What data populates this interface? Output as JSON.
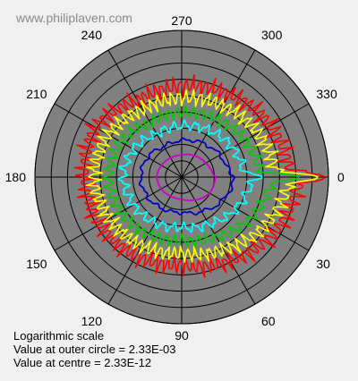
{
  "watermark": "www.philiplaven.com",
  "scale_label": "Logarithmic scale",
  "outer_label": "Value at outer circle = 2.33E-03",
  "centre_label": "Value at centre = 2.33E-12",
  "chart_data": {
    "type": "polar-line",
    "title": "",
    "angle_labels": [
      "0",
      "30",
      "60",
      "90",
      "120",
      "150",
      "180",
      "210",
      "240",
      "270",
      "300",
      "330"
    ],
    "angle_ticks_deg": [
      0,
      30,
      60,
      90,
      120,
      150,
      180,
      210,
      240,
      270,
      300,
      330
    ],
    "radial_scale": "log",
    "rings": 9,
    "outer_value": 0.00233,
    "centre_value": 2.33e-12,
    "background_color": "#808080",
    "grid_color": "#000000",
    "series": [
      {
        "color": "#ff0000",
        "radius_fraction": [
          0.8,
          0.74,
          0.66,
          0.6,
          0.62,
          0.64,
          0.66,
          0.68,
          0.6,
          0.62,
          0.65,
          0.7,
          0.74
        ],
        "ripple": 0.05,
        "ripple_freq": 90,
        "forward_peak": 0.98
      },
      {
        "color": "#ffff00",
        "radius_fraction": [
          0.74,
          0.66,
          0.57,
          0.52,
          0.54,
          0.57,
          0.6,
          0.58,
          0.53,
          0.54,
          0.56,
          0.6,
          0.64
        ],
        "ripple": 0.04,
        "ripple_freq": 70,
        "forward_peak": 0.93
      },
      {
        "color": "#00cc00",
        "radius_fraction": [
          0.62,
          0.55,
          0.47,
          0.43,
          0.45,
          0.48,
          0.5,
          0.48,
          0.43,
          0.44,
          0.46,
          0.5,
          0.54
        ],
        "ripple": 0.03,
        "ripple_freq": 50,
        "forward_peak": 0.8
      },
      {
        "color": "#00ffff",
        "radius_fraction": [
          0.48,
          0.43,
          0.37,
          0.34,
          0.36,
          0.38,
          0.4,
          0.38,
          0.34,
          0.35,
          0.37,
          0.4,
          0.43
        ],
        "ripple": 0.025,
        "ripple_freq": 30,
        "forward_peak": 0.55
      },
      {
        "color": "#0000cc",
        "radius_fraction": [
          0.36,
          0.32,
          0.27,
          0.24,
          0.25,
          0.27,
          0.28,
          0.27,
          0.24,
          0.25,
          0.27,
          0.3,
          0.33
        ],
        "ripple": 0.01,
        "ripple_freq": 14,
        "forward_peak": 0.36
      },
      {
        "color": "#cc00cc",
        "radius_fraction": [
          0.23,
          0.22,
          0.18,
          0.15,
          0.15,
          0.16,
          0.17,
          0.16,
          0.15,
          0.15,
          0.17,
          0.19,
          0.22
        ],
        "ripple": 0.0,
        "ripple_freq": 0,
        "forward_peak": 0.23
      }
    ]
  }
}
